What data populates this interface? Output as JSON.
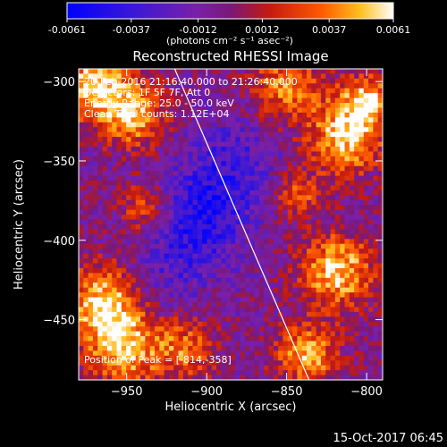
{
  "colorbar": {
    "tick_labels": [
      "-0.0061",
      "-0.0037",
      "-0.0012",
      "0.0012",
      "0.0037",
      "0.0061"
    ],
    "unit_label": "(photons cm⁻² s⁻¹ asec⁻²)",
    "range": [
      -0.0061,
      0.0061
    ]
  },
  "title": "Reconstructed RHESSI Image",
  "info": {
    "line1": "20-Feb-2016 21:16:40.000 to 21:26:40.000",
    "line2": "Detectors: 1F 5F 7F, Att 0",
    "line3": "Energy Range: 25.0 - 50.0 keV",
    "line4": "Clean    Total counts: 1.12E+04"
  },
  "peak_label": "Position of Peak = [-814,-358]",
  "chart_data": {
    "type": "heatmap",
    "xlabel": "Heliocentric X (arcsec)",
    "ylabel": "Heliocentric Y (arcsec)",
    "xlim": [
      -980,
      -790
    ],
    "ylim": [
      -488,
      -292
    ],
    "x_ticks": [
      -950,
      -900,
      -850,
      -800
    ],
    "y_ticks": [
      -300,
      -350,
      -400,
      -450
    ],
    "x_tick_labels": [
      "−950",
      "−900",
      "−850",
      "−800"
    ],
    "y_tick_labels": [
      "−300",
      "−350",
      "−400",
      "−450"
    ],
    "limb_line": [
      [
        -920,
        -292
      ],
      [
        -836,
        -488
      ]
    ],
    "peak_position": [
      -814,
      -358
    ]
  },
  "footer_timestamp": "15-Oct-2017 06:45"
}
